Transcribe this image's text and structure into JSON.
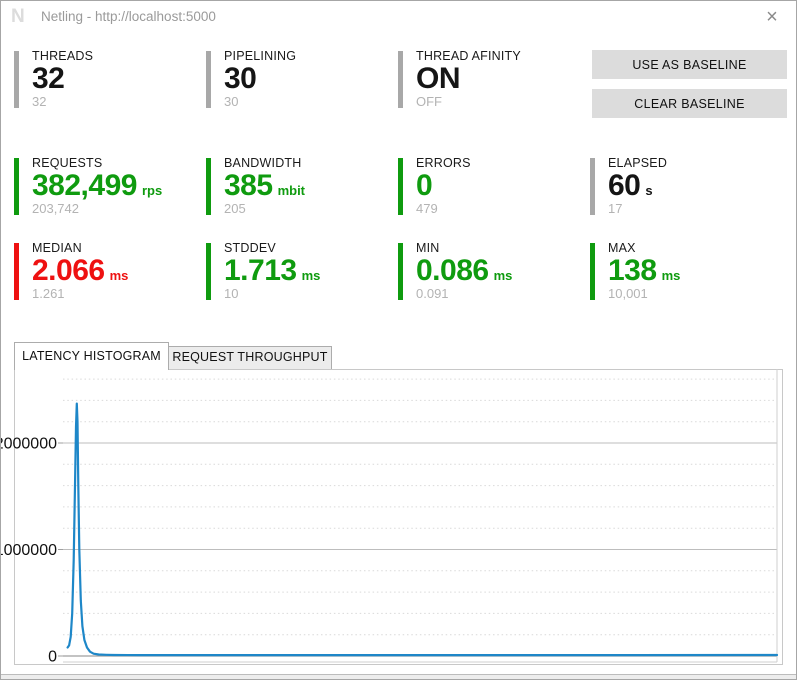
{
  "window": {
    "title": "Netling - http://localhost:5000",
    "app_icon_letter": "N",
    "close_glyph": "×"
  },
  "stats": [
    {
      "label": "THREADS",
      "value": "32",
      "unit": "",
      "baseline": "32",
      "color": "gray"
    },
    {
      "label": "PIPELINING",
      "value": "30",
      "unit": "",
      "baseline": "30",
      "color": "gray"
    },
    {
      "label": "THREAD AFINITY",
      "value": "ON",
      "unit": "",
      "baseline": "OFF",
      "color": "gray"
    },
    {
      "label": "REQUESTS",
      "value": "382,499",
      "unit": "rps",
      "baseline": "203,742",
      "color": "green"
    },
    {
      "label": "BANDWIDTH",
      "value": "385",
      "unit": "mbit",
      "baseline": "205",
      "color": "green"
    },
    {
      "label": "ERRORS",
      "value": "0",
      "unit": "",
      "baseline": "479",
      "color": "green"
    },
    {
      "label": "ELAPSED",
      "value": "60",
      "unit": "s",
      "baseline": "17",
      "color": "gray"
    },
    {
      "label": "MEDIAN",
      "value": "2.066",
      "unit": "ms",
      "baseline": "1.261",
      "color": "red"
    },
    {
      "label": "STDDEV",
      "value": "1.713",
      "unit": "ms",
      "baseline": "10",
      "color": "green"
    },
    {
      "label": "MIN",
      "value": "0.086",
      "unit": "ms",
      "baseline": "0.091",
      "color": "green"
    },
    {
      "label": "MAX",
      "value": "138",
      "unit": "ms",
      "baseline": "10,001",
      "color": "green"
    }
  ],
  "buttons": {
    "use_as_baseline": "USE AS BASELINE",
    "clear_baseline": "CLEAR BASELINE"
  },
  "tabs": [
    {
      "label": "LATENCY HISTOGRAM",
      "active": true
    },
    {
      "label": "REQUEST THROUGHPUT",
      "active": false
    }
  ],
  "colors": {
    "green": "#0f9b0f",
    "red": "#ee1111",
    "gray_bar": "#a8a8a8",
    "sub_text": "#b3b3b3",
    "chart_line": "#1e87c8",
    "grid_major": "#bdbdbd",
    "grid_minor": "#d9d9d9",
    "axis": "#9f9f9f"
  },
  "chart_data": {
    "type": "line",
    "title": "",
    "xlabel": "",
    "ylabel": "",
    "xlim": [
      0,
      140
    ],
    "ylim": [
      0,
      2695000
    ],
    "grid": true,
    "legend": "none",
    "y_ticks": [
      {
        "value": 0,
        "label": "0"
      },
      {
        "value": 1000000,
        "label": "1000000"
      },
      {
        "value": 2000000,
        "label": "2000000"
      }
    ],
    "y_minor_step": 200000,
    "y_minor_max": 2600000,
    "series": [
      {
        "name": "latency-histogram",
        "color": "#1e87c8",
        "points": [
          [
            0.9,
            80000
          ],
          [
            1.2,
            100000
          ],
          [
            1.5,
            180000
          ],
          [
            1.8,
            400000
          ],
          [
            2.1,
            900000
          ],
          [
            2.35,
            1600000
          ],
          [
            2.55,
            2150000
          ],
          [
            2.7,
            2370000
          ],
          [
            2.85,
            2200000
          ],
          [
            3.0,
            1600000
          ],
          [
            3.2,
            1000000
          ],
          [
            3.5,
            520000
          ],
          [
            3.8,
            280000
          ],
          [
            4.2,
            150000
          ],
          [
            4.7,
            80000
          ],
          [
            5.3,
            40000
          ],
          [
            6.0,
            22000
          ],
          [
            7.0,
            14000
          ],
          [
            8.5,
            11000
          ],
          [
            10,
            9500
          ],
          [
            15,
            8500
          ],
          [
            25,
            8000
          ],
          [
            50,
            8000
          ],
          [
            80,
            8000
          ],
          [
            110,
            8000
          ],
          [
            140,
            9000
          ]
        ]
      }
    ]
  }
}
